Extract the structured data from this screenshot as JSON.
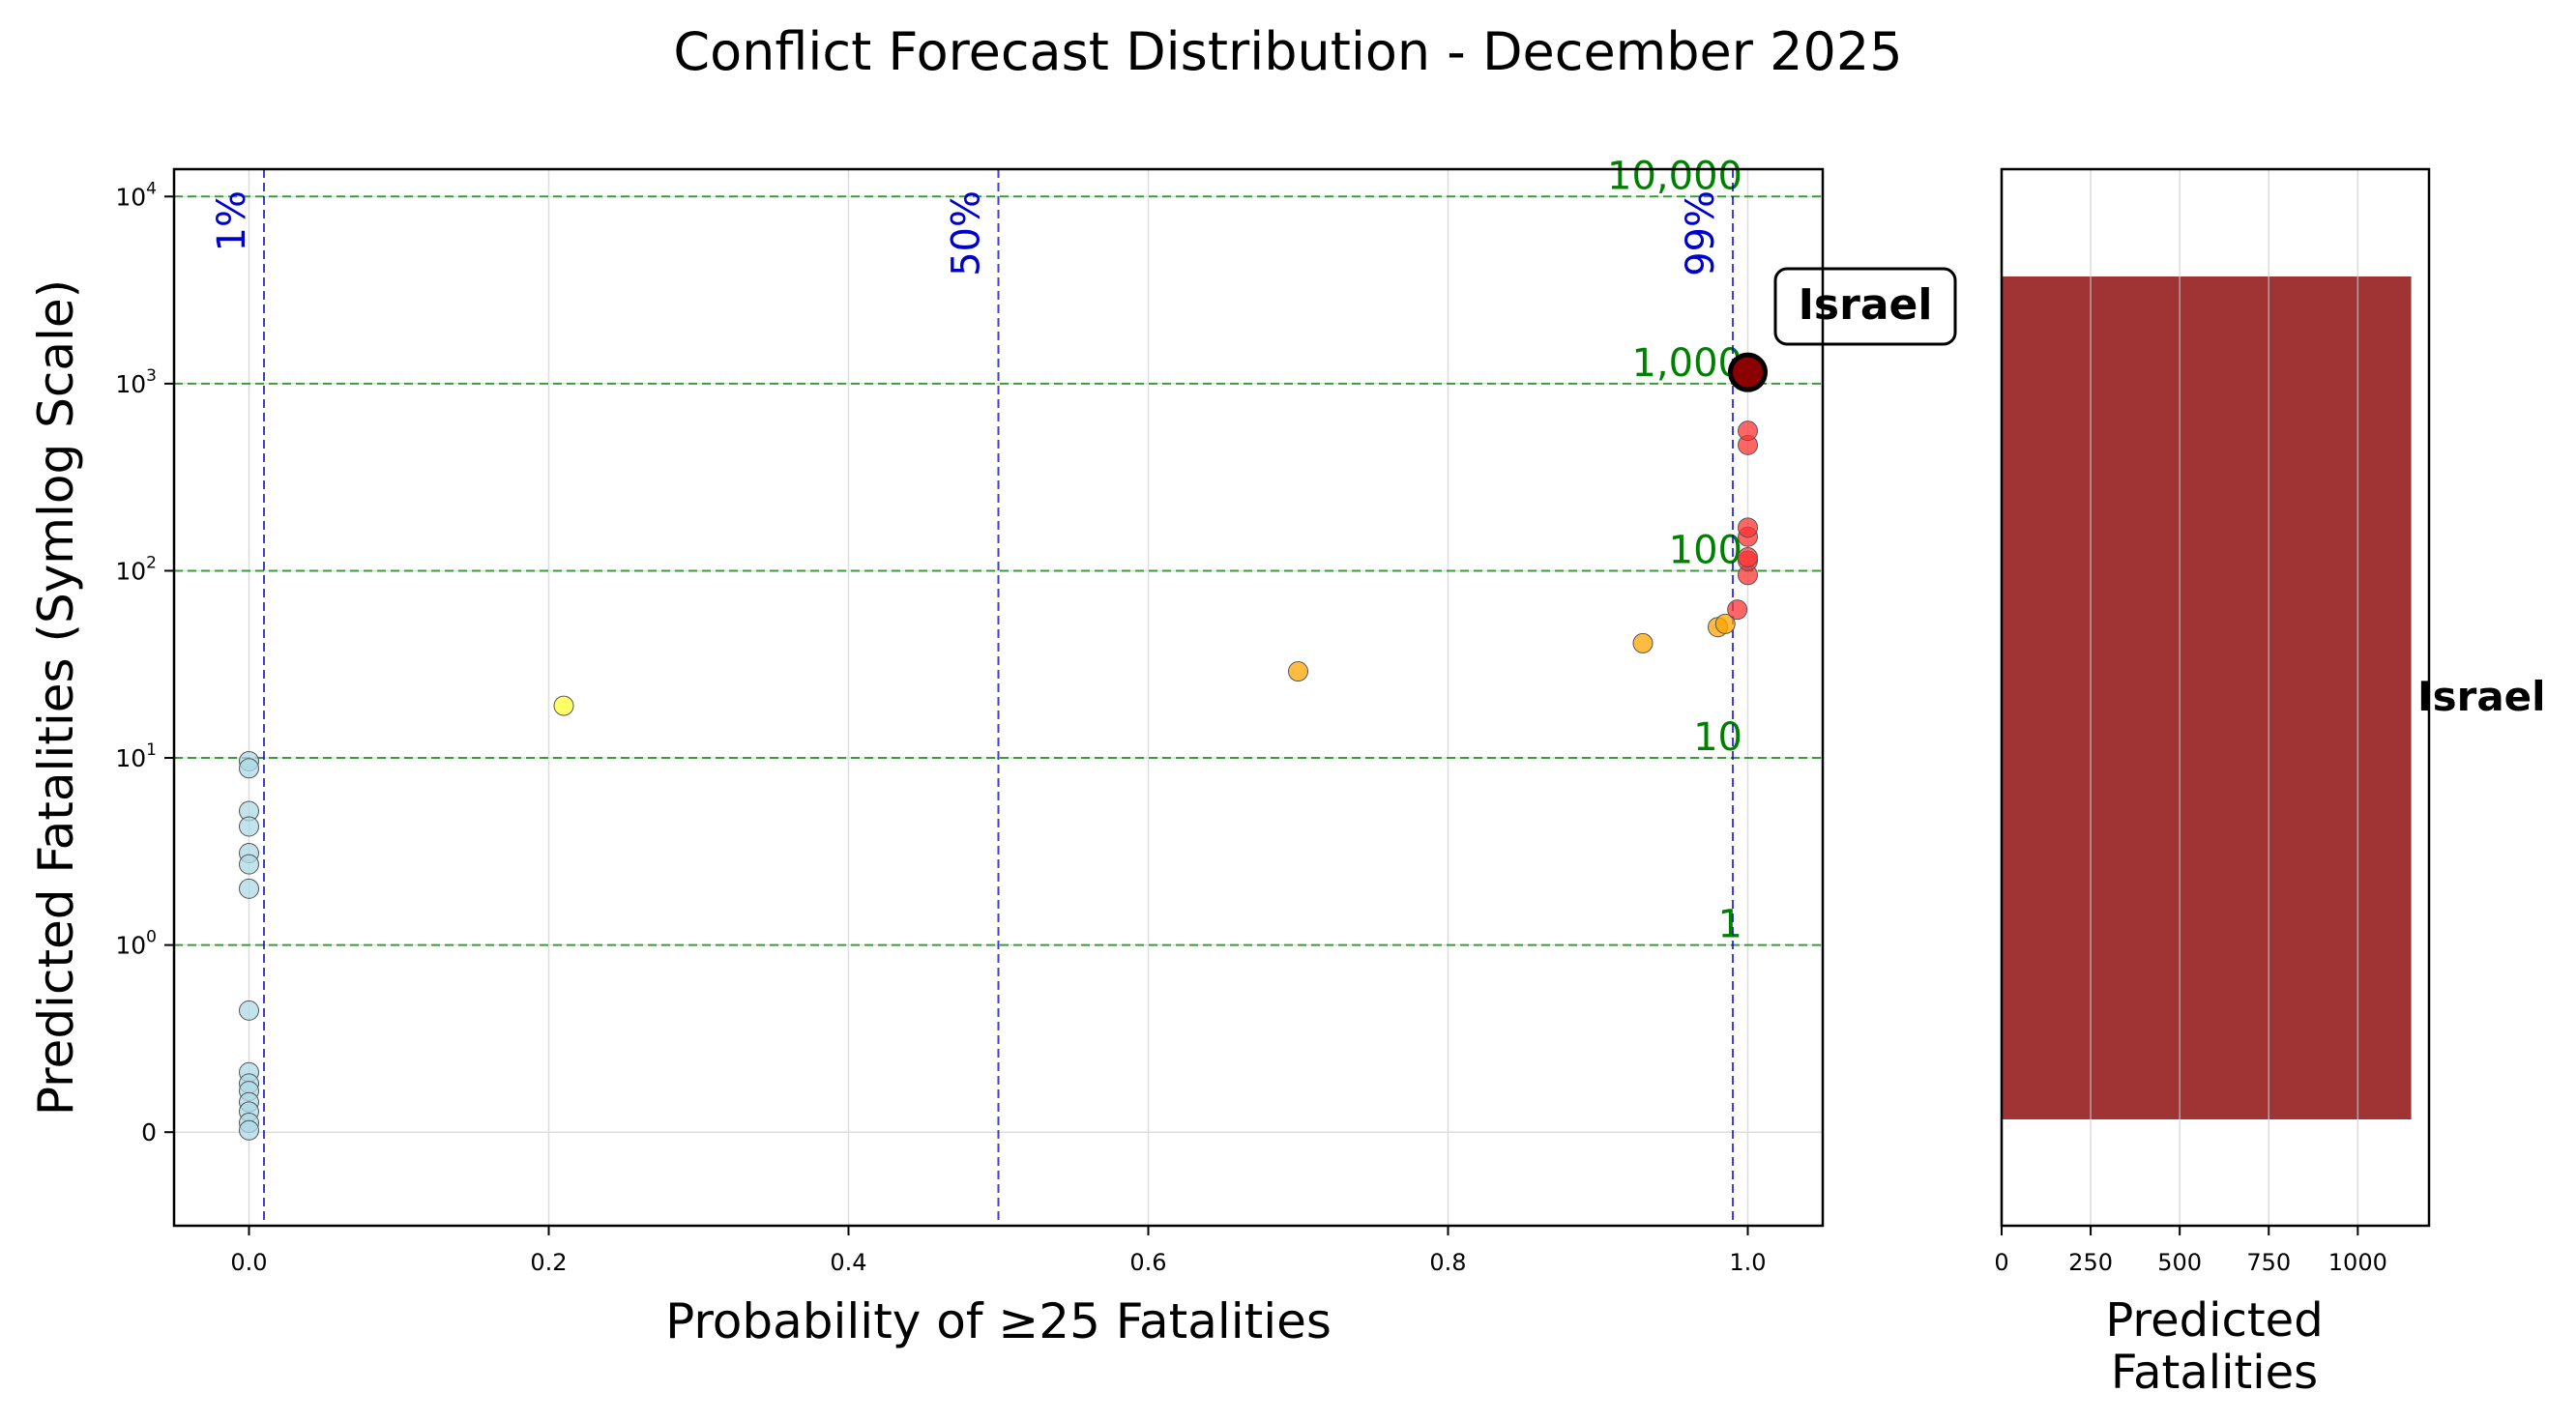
{
  "title": "Conflict Forecast Distribution - December 2025",
  "chart_data": [
    {
      "type": "scatter",
      "xlabel": "Probability of ≥25 Fatalities",
      "ylabel": "Predicted Fatalities (Symlog Scale)",
      "xlim": [
        -0.05,
        1.05
      ],
      "ylim_symlog": [
        -0.5,
        14000
      ],
      "y_scale": "symlog",
      "x_ticks": [
        {
          "value": 0.0,
          "label": "0.0"
        },
        {
          "value": 0.2,
          "label": "0.2"
        },
        {
          "value": 0.4,
          "label": "0.4"
        },
        {
          "value": 0.6,
          "label": "0.6"
        },
        {
          "value": 0.8,
          "label": "0.8"
        },
        {
          "value": 1.0,
          "label": "1.0"
        }
      ],
      "y_ticks": [
        {
          "value": 0,
          "base": "0",
          "exp": ""
        },
        {
          "value": 1,
          "base": "10",
          "exp": "0"
        },
        {
          "value": 10,
          "base": "10",
          "exp": "1"
        },
        {
          "value": 100,
          "base": "10",
          "exp": "2"
        },
        {
          "value": 1000,
          "base": "10",
          "exp": "3"
        },
        {
          "value": 10000,
          "base": "10",
          "exp": "4"
        }
      ],
      "grid": true,
      "probability_lines": [
        {
          "x": 0.01,
          "label": "1%"
        },
        {
          "x": 0.5,
          "label": "50%"
        },
        {
          "x": 0.99,
          "label": "99%"
        }
      ],
      "threshold_lines": [
        {
          "y": 1,
          "label": "1"
        },
        {
          "y": 10,
          "label": "10"
        },
        {
          "y": 100,
          "label": "100"
        },
        {
          "y": 1000,
          "label": "1,000"
        },
        {
          "y": 10000,
          "label": "10,000"
        }
      ],
      "colors": {
        "low": "#add8e6",
        "mid": "#ffff33",
        "high": "#ffa500",
        "very_high": "#ff3333",
        "highlight": "#8b0000",
        "probability_line": "#0000cc",
        "threshold_line": "#228b22",
        "threshold_text": "#008000"
      },
      "points": [
        {
          "x": 0.0,
          "y": 9.6,
          "cat": "low"
        },
        {
          "x": 0.0,
          "y": 8.8,
          "cat": "low"
        },
        {
          "x": 0.0,
          "y": 5.2,
          "cat": "low"
        },
        {
          "x": 0.0,
          "y": 4.3,
          "cat": "low"
        },
        {
          "x": 0.0,
          "y": 3.1,
          "cat": "low"
        },
        {
          "x": 0.0,
          "y": 2.7,
          "cat": "low"
        },
        {
          "x": 0.0,
          "y": 2.0,
          "cat": "low"
        },
        {
          "x": 0.0,
          "y": 0.65,
          "cat": "low"
        },
        {
          "x": 0.0,
          "y": 0.32,
          "cat": "low"
        },
        {
          "x": 0.0,
          "y": 0.26,
          "cat": "low"
        },
        {
          "x": 0.0,
          "y": 0.22,
          "cat": "low"
        },
        {
          "x": 0.0,
          "y": 0.16,
          "cat": "low"
        },
        {
          "x": 0.0,
          "y": 0.11,
          "cat": "low"
        },
        {
          "x": 0.0,
          "y": 0.05,
          "cat": "low"
        },
        {
          "x": 0.0,
          "y": 0.01,
          "cat": "low"
        },
        {
          "x": 0.21,
          "y": 19,
          "cat": "mid"
        },
        {
          "x": 0.7,
          "y": 29,
          "cat": "high"
        },
        {
          "x": 0.93,
          "y": 41,
          "cat": "high"
        },
        {
          "x": 0.98,
          "y": 50,
          "cat": "high"
        },
        {
          "x": 0.985,
          "y": 52,
          "cat": "high"
        },
        {
          "x": 0.993,
          "y": 62,
          "cat": "very_high"
        },
        {
          "x": 1.0,
          "y": 95,
          "cat": "very_high"
        },
        {
          "x": 1.0,
          "y": 113,
          "cat": "very_high"
        },
        {
          "x": 1.0,
          "y": 118,
          "cat": "very_high"
        },
        {
          "x": 1.0,
          "y": 152,
          "cat": "very_high"
        },
        {
          "x": 1.0,
          "y": 170,
          "cat": "very_high"
        },
        {
          "x": 1.0,
          "y": 470,
          "cat": "very_high"
        },
        {
          "x": 1.0,
          "y": 560,
          "cat": "very_high"
        }
      ],
      "highlight": {
        "x": 1.0,
        "y": 1150,
        "label": "Israel"
      }
    },
    {
      "type": "bar",
      "orientation": "horizontal",
      "xlabel_lines": [
        "Predicted",
        "Fatalities"
      ],
      "xlim": [
        0,
        1200
      ],
      "x_ticks": [
        {
          "value": 0,
          "label": "0"
        },
        {
          "value": 250,
          "label": "250"
        },
        {
          "value": 500,
          "label": "500"
        },
        {
          "value": 750,
          "label": "750"
        },
        {
          "value": 1000,
          "label": "1000"
        }
      ],
      "categories": [
        "Israel"
      ],
      "values": [
        1150
      ],
      "bar_color": "#a03434",
      "grid": true
    }
  ]
}
